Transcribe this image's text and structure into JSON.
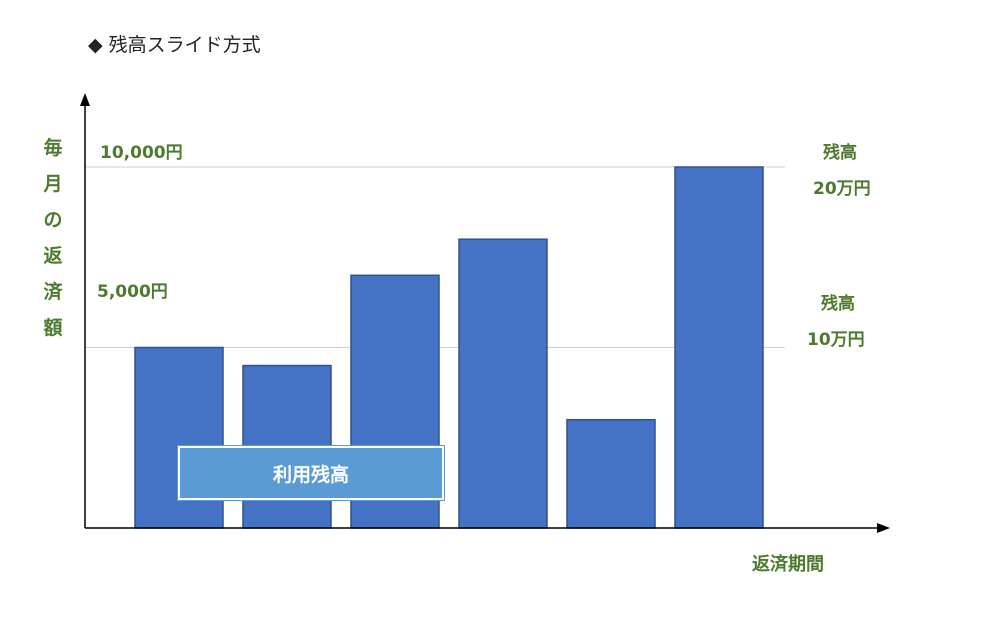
{
  "title": "残高スライド方式",
  "title_marker": "◆",
  "y_axis_label": [
    "毎",
    "月",
    "の",
    "返",
    "済",
    "額"
  ],
  "x_axis_label": "返済期間",
  "overlay_label": "利用残高",
  "right_labels": {
    "top": [
      "残高",
      "20万円"
    ],
    "middle": [
      "残高",
      "10万円"
    ]
  },
  "colors": {
    "bar_fill": "#4472c4",
    "bar_stroke": "#2f528f",
    "label_green": "#4e7a2e",
    "overlay_fill": "#5b9bd5",
    "gridline": "#d0d0d0"
  },
  "chart_data": {
    "type": "bar",
    "categories": [
      "",
      "",
      "",
      "",
      "",
      ""
    ],
    "values": [
      5000,
      4500,
      7000,
      8000,
      3000,
      10000
    ],
    "ylim": [
      0,
      10000
    ],
    "tick_values": [
      5000,
      10000
    ],
    "tick_labels": [
      "5,000円",
      "10,000円"
    ],
    "grid": true
  }
}
